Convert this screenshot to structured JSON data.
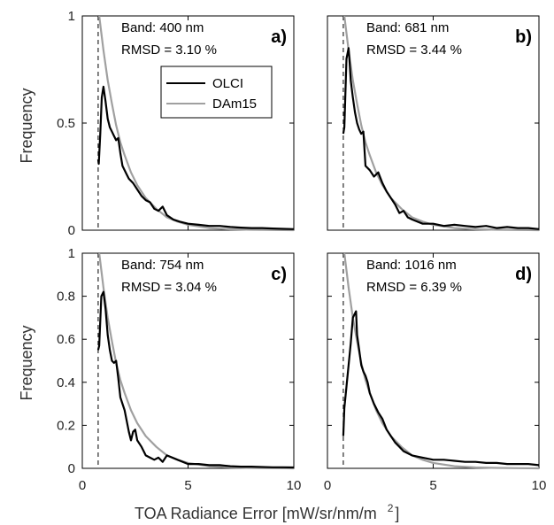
{
  "figure": {
    "xlabel": "TOA Radiance Error [mW/sr/nm/m",
    "xlabel_superscript": "2",
    "xlabel_close": "]",
    "ylabel": "Frequency"
  },
  "legend": {
    "entries": [
      {
        "name": "OLCI",
        "color": "#000000"
      },
      {
        "name": "DAm15",
        "color": "#a0a0a0"
      }
    ]
  },
  "chart_data": [
    {
      "type": "line",
      "letter": "a)",
      "band": "Band: 400 nm",
      "rmsd": "RMSD = 3.10 %",
      "xlim": [
        0,
        10
      ],
      "ylim": [
        0,
        1
      ],
      "xticks": [
        "0",
        "5",
        "10"
      ],
      "yticks": [
        "0",
        "0.5",
        "1"
      ],
      "threshold_x": 0.75,
      "series": [
        {
          "name": "OLCI",
          "color": "#000000",
          "x": [
            0.75,
            0.78,
            0.85,
            0.92,
            1.0,
            1.1,
            1.2,
            1.3,
            1.4,
            1.5,
            1.6,
            1.7,
            1.8,
            1.9,
            2.0,
            2.1,
            2.2,
            2.4,
            2.6,
            2.8,
            3.0,
            3.2,
            3.4,
            3.6,
            3.8,
            4.0,
            4.3,
            4.6,
            5.0,
            5.5,
            6.0,
            6.5,
            7.0,
            7.5,
            8.0,
            8.5,
            9.0,
            9.5,
            10.0
          ],
          "y": [
            0.33,
            0.31,
            0.45,
            0.62,
            0.67,
            0.6,
            0.52,
            0.48,
            0.46,
            0.44,
            0.42,
            0.43,
            0.36,
            0.3,
            0.28,
            0.26,
            0.24,
            0.22,
            0.19,
            0.16,
            0.14,
            0.13,
            0.1,
            0.09,
            0.11,
            0.07,
            0.05,
            0.04,
            0.03,
            0.025,
            0.02,
            0.02,
            0.015,
            0.012,
            0.01,
            0.01,
            0.008,
            0.006,
            0.005
          ]
        },
        {
          "name": "DAm15",
          "color": "#a0a0a0",
          "x": [
            0.8,
            0.9,
            1.0,
            1.2,
            1.4,
            1.6,
            1.8,
            2.0,
            2.3,
            2.6,
            3.0,
            3.5,
            4.0,
            4.5,
            5.0,
            6.0,
            7.0,
            8.0,
            9.0,
            10.0
          ],
          "y": [
            1.0,
            0.92,
            0.84,
            0.7,
            0.59,
            0.49,
            0.41,
            0.35,
            0.27,
            0.21,
            0.15,
            0.1,
            0.06,
            0.04,
            0.025,
            0.01,
            0.004,
            0.002,
            0.001,
            0.0
          ]
        }
      ]
    },
    {
      "type": "line",
      "letter": "b)",
      "band": "Band: 681 nm",
      "rmsd": "RMSD = 3.44 %",
      "xlim": [
        0,
        10
      ],
      "ylim": [
        0,
        1
      ],
      "xticks": [
        "0",
        "5",
        "10"
      ],
      "yticks": [
        "0",
        "0.5",
        "1"
      ],
      "threshold_x": 0.75,
      "series": [
        {
          "name": "OLCI",
          "color": "#000000",
          "x": [
            0.75,
            0.8,
            0.9,
            1.0,
            1.05,
            1.1,
            1.2,
            1.3,
            1.4,
            1.5,
            1.6,
            1.7,
            1.8,
            2.0,
            2.2,
            2.4,
            2.6,
            2.8,
            3.0,
            3.2,
            3.4,
            3.6,
            3.8,
            4.0,
            4.5,
            5.0,
            5.5,
            6.0,
            6.5,
            7.0,
            7.5,
            8.0,
            8.5,
            9.0,
            9.5,
            10.0
          ],
          "y": [
            0.45,
            0.48,
            0.8,
            0.85,
            0.78,
            0.7,
            0.62,
            0.55,
            0.5,
            0.47,
            0.45,
            0.46,
            0.3,
            0.28,
            0.25,
            0.27,
            0.22,
            0.18,
            0.15,
            0.12,
            0.08,
            0.09,
            0.06,
            0.05,
            0.03,
            0.03,
            0.02,
            0.025,
            0.02,
            0.015,
            0.02,
            0.01,
            0.015,
            0.01,
            0.01,
            0.005
          ]
        },
        {
          "name": "DAm15",
          "color": "#a0a0a0",
          "x": [
            0.8,
            0.9,
            1.0,
            1.2,
            1.4,
            1.6,
            1.8,
            2.0,
            2.3,
            2.6,
            3.0,
            3.5,
            4.0,
            4.5,
            5.0,
            6.0,
            7.0,
            8.0,
            9.0,
            10.0
          ],
          "y": [
            1.0,
            0.92,
            0.84,
            0.7,
            0.59,
            0.49,
            0.41,
            0.35,
            0.27,
            0.21,
            0.15,
            0.1,
            0.06,
            0.04,
            0.025,
            0.01,
            0.004,
            0.002,
            0.001,
            0.0
          ]
        }
      ]
    },
    {
      "type": "line",
      "letter": "c)",
      "band": "Band: 754 nm",
      "rmsd": "RMSD = 3.04 %",
      "xlim": [
        0,
        10
      ],
      "ylim": [
        0,
        1
      ],
      "xticks": [
        "0",
        "5",
        "10"
      ],
      "yticks": [
        "0",
        "0.2",
        "0.4",
        "0.6",
        "0.8",
        "1"
      ],
      "threshold_x": 0.75,
      "series": [
        {
          "name": "OLCI",
          "color": "#000000",
          "x": [
            0.75,
            0.8,
            0.9,
            1.0,
            1.1,
            1.2,
            1.3,
            1.4,
            1.5,
            1.6,
            1.7,
            1.8,
            1.9,
            2.0,
            2.1,
            2.2,
            2.3,
            2.4,
            2.5,
            2.6,
            2.8,
            3.0,
            3.2,
            3.4,
            3.6,
            3.8,
            4.0,
            4.5,
            5.0,
            5.5,
            6.0,
            6.5,
            7.0,
            7.5,
            8.0,
            8.5,
            9.0,
            9.5,
            10.0
          ],
          "y": [
            0.55,
            0.57,
            0.8,
            0.82,
            0.74,
            0.62,
            0.55,
            0.5,
            0.49,
            0.5,
            0.42,
            0.33,
            0.3,
            0.27,
            0.22,
            0.17,
            0.13,
            0.17,
            0.18,
            0.13,
            0.1,
            0.06,
            0.05,
            0.04,
            0.05,
            0.03,
            0.06,
            0.04,
            0.02,
            0.02,
            0.015,
            0.015,
            0.01,
            0.008,
            0.008,
            0.006,
            0.005,
            0.005,
            0.004
          ]
        },
        {
          "name": "DAm15",
          "color": "#a0a0a0",
          "x": [
            0.8,
            0.9,
            1.0,
            1.2,
            1.4,
            1.6,
            1.8,
            2.0,
            2.3,
            2.6,
            3.0,
            3.5,
            4.0,
            4.5,
            5.0,
            6.0,
            7.0,
            8.0,
            9.0,
            10.0
          ],
          "y": [
            1.0,
            0.92,
            0.84,
            0.7,
            0.59,
            0.49,
            0.41,
            0.35,
            0.27,
            0.21,
            0.15,
            0.1,
            0.06,
            0.04,
            0.025,
            0.01,
            0.004,
            0.002,
            0.001,
            0.0
          ]
        }
      ]
    },
    {
      "type": "line",
      "letter": "d)",
      "band": "Band: 1016 nm",
      "rmsd": "RMSD = 6.39 %",
      "xlim": [
        0,
        10
      ],
      "ylim": [
        0,
        1
      ],
      "xticks": [
        "0",
        "5",
        "10"
      ],
      "yticks": [
        "0",
        "0.2",
        "0.4",
        "0.6",
        "0.8",
        "1"
      ],
      "threshold_x": 0.75,
      "series": [
        {
          "name": "OLCI",
          "color": "#000000",
          "x": [
            0.75,
            0.8,
            0.9,
            1.0,
            1.1,
            1.2,
            1.3,
            1.35,
            1.4,
            1.5,
            1.6,
            1.7,
            1.8,
            1.9,
            2.0,
            2.2,
            2.4,
            2.6,
            2.8,
            3.0,
            3.2,
            3.4,
            3.6,
            3.8,
            4.0,
            4.5,
            5.0,
            5.5,
            6.0,
            6.5,
            7.0,
            7.5,
            8.0,
            8.5,
            9.0,
            9.5,
            10.0
          ],
          "y": [
            0.15,
            0.28,
            0.38,
            0.48,
            0.58,
            0.7,
            0.72,
            0.73,
            0.62,
            0.55,
            0.48,
            0.45,
            0.43,
            0.4,
            0.35,
            0.3,
            0.26,
            0.23,
            0.18,
            0.15,
            0.12,
            0.1,
            0.08,
            0.07,
            0.06,
            0.05,
            0.04,
            0.04,
            0.035,
            0.03,
            0.03,
            0.025,
            0.025,
            0.02,
            0.02,
            0.02,
            0.015
          ]
        },
        {
          "name": "DAm15",
          "color": "#a0a0a0",
          "x": [
            0.8,
            0.9,
            1.0,
            1.2,
            1.4,
            1.6,
            1.8,
            2.0,
            2.3,
            2.6,
            3.0,
            3.5,
            4.0,
            4.5,
            5.0,
            6.0,
            7.0,
            8.0,
            9.0,
            10.0
          ],
          "y": [
            1.0,
            0.92,
            0.84,
            0.7,
            0.59,
            0.49,
            0.41,
            0.35,
            0.27,
            0.21,
            0.15,
            0.1,
            0.06,
            0.04,
            0.025,
            0.01,
            0.004,
            0.002,
            0.001,
            0.0
          ]
        }
      ]
    }
  ]
}
